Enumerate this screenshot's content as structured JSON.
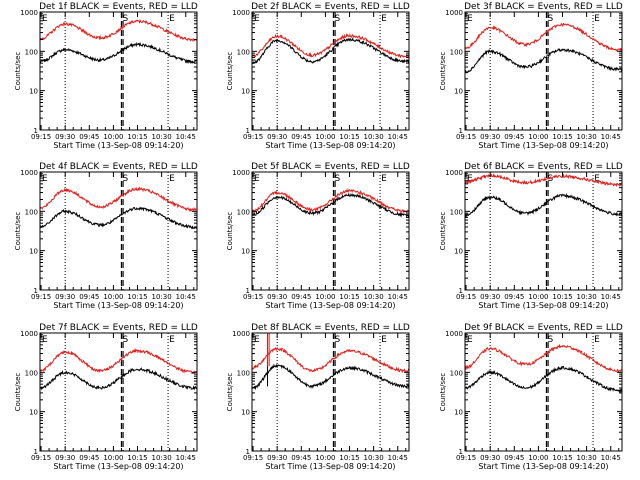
{
  "figure": {
    "colors": {
      "events": "#000000",
      "lld": "#e0201c",
      "axes": "#000000",
      "background": "#ffffff"
    },
    "start_time_label": "Start Time (13-Sep-08 09:14:20)",
    "ylabel": "Counts/sec"
  },
  "chart_data": [
    {
      "type": "line",
      "title": "Det 1f BLACK = Events, RED = LLD",
      "xlabel": "Start Time (13-Sep-08 09:14:20)",
      "ylabel": "Counts/sec",
      "yscale": "log",
      "ylim": [
        1,
        1000
      ],
      "ytick_labels": [
        "1",
        "10",
        "100",
        "1000"
      ],
      "x_tick_labels": [
        "09:15",
        "09:30",
        "09:45",
        "10:00",
        "10:15",
        "10:30",
        "10:45"
      ],
      "xlim": [
        "09:14:20",
        "10:52"
      ],
      "markers": {
        "dotted": [
          "09:30",
          "10:34"
        ],
        "dashed": [
          "10:05",
          "10:06"
        ],
        "letters": [
          "E",
          "S",
          "E"
        ]
      },
      "series": [
        {
          "name": "Events",
          "peaks": [
            {
              "time": "09:30",
              "value": 110
            },
            {
              "time": "10:15",
              "value": 150
            }
          ],
          "troughs": [
            {
              "time": "09:14:20",
              "value": 55
            },
            {
              "time": "09:52",
              "value": 60
            },
            {
              "time": "10:50",
              "value": 55
            }
          ]
        },
        {
          "name": "LLD",
          "peaks": [
            {
              "time": "09:30",
              "value": 500
            },
            {
              "time": "10:15",
              "value": 580
            }
          ],
          "troughs": [
            {
              "time": "09:14:20",
              "value": 210
            },
            {
              "time": "09:52",
              "value": 220
            },
            {
              "time": "10:50",
              "value": 200
            }
          ]
        }
      ]
    },
    {
      "type": "line",
      "title": "Det 2f BLACK = Events, RED = LLD",
      "xlabel": "Start Time (13-Sep-08 09:14:20)",
      "ylabel": "Counts/sec",
      "yscale": "log",
      "ylim": [
        1,
        1000
      ],
      "ytick_labels": [
        "1",
        "10",
        "100",
        "1000"
      ],
      "x_tick_labels": [
        "09:15",
        "09:30",
        "09:45",
        "10:00",
        "10:15",
        "10:30",
        "10:45"
      ],
      "xlim": [
        "09:14:20",
        "10:52"
      ],
      "markers": {
        "dotted": [
          "09:30",
          "10:34"
        ],
        "dashed": [
          "10:05",
          "10:06"
        ],
        "letters": [
          "E",
          "S",
          "E"
        ]
      },
      "series": [
        {
          "name": "Events",
          "peaks": [
            {
              "time": "09:30",
              "value": 190
            },
            {
              "time": "10:15",
              "value": 200
            }
          ],
          "troughs": [
            {
              "time": "09:14:20",
              "value": 50
            },
            {
              "time": "09:52",
              "value": 55
            },
            {
              "time": "10:50",
              "value": 55
            }
          ]
        },
        {
          "name": "LLD",
          "peaks": [
            {
              "time": "09:30",
              "value": 240
            },
            {
              "time": "10:15",
              "value": 250
            }
          ],
          "troughs": [
            {
              "time": "09:14:20",
              "value": 75
            },
            {
              "time": "09:52",
              "value": 80
            },
            {
              "time": "10:50",
              "value": 75
            }
          ]
        }
      ]
    },
    {
      "type": "line",
      "title": "Det 3f BLACK = Events, RED = LLD",
      "xlabel": "Start Time (13-Sep-08 09:14:20)",
      "ylabel": "Counts/sec",
      "yscale": "log",
      "ylim": [
        1,
        1000
      ],
      "ytick_labels": [
        "1",
        "10",
        "100",
        "1000"
      ],
      "x_tick_labels": [
        "09:15",
        "09:30",
        "09:45",
        "10:00",
        "10:15",
        "10:30",
        "10:45"
      ],
      "xlim": [
        "09:14:20",
        "10:52"
      ],
      "markers": {
        "dotted": [
          "09:30",
          "10:34"
        ],
        "dashed": [
          "10:05",
          "10:06"
        ],
        "letters": [
          "E",
          "S",
          "E"
        ]
      },
      "series": [
        {
          "name": "Events",
          "peaks": [
            {
              "time": "09:30",
              "value": 100
            },
            {
              "time": "10:15",
              "value": 110
            }
          ],
          "troughs": [
            {
              "time": "09:14:20",
              "value": 30
            },
            {
              "time": "09:52",
              "value": 40
            },
            {
              "time": "10:50",
              "value": 35
            }
          ]
        },
        {
          "name": "LLD",
          "peaks": [
            {
              "time": "09:30",
              "value": 400
            },
            {
              "time": "10:15",
              "value": 480
            }
          ],
          "troughs": [
            {
              "time": "09:14:20",
              "value": 120
            },
            {
              "time": "09:52",
              "value": 150
            },
            {
              "time": "10:50",
              "value": 110
            }
          ]
        }
      ]
    },
    {
      "type": "line",
      "title": "Det 4f BLACK = Events, RED = LLD",
      "xlabel": "Start Time (13-Sep-08 09:14:20)",
      "ylabel": "Counts/sec",
      "yscale": "log",
      "ylim": [
        1,
        1000
      ],
      "ytick_labels": [
        "1",
        "10",
        "100",
        "1000"
      ],
      "x_tick_labels": [
        "09:15",
        "09:30",
        "09:45",
        "10:00",
        "10:15",
        "10:30",
        "10:45"
      ],
      "xlim": [
        "09:14:20",
        "10:52"
      ],
      "markers": {
        "dotted": [
          "09:30",
          "10:34"
        ],
        "dashed": [
          "10:05",
          "10:06"
        ],
        "letters": [
          "E",
          "S",
          "E"
        ]
      },
      "series": [
        {
          "name": "Events",
          "peaks": [
            {
              "time": "09:30",
              "value": 100
            },
            {
              "time": "10:15",
              "value": 120
            }
          ],
          "troughs": [
            {
              "time": "09:14:20",
              "value": 40
            },
            {
              "time": "09:52",
              "value": 45
            },
            {
              "time": "10:50",
              "value": 40
            }
          ]
        },
        {
          "name": "LLD",
          "peaks": [
            {
              "time": "09:30",
              "value": 350
            },
            {
              "time": "10:15",
              "value": 370
            }
          ],
          "troughs": [
            {
              "time": "09:14:20",
              "value": 120
            },
            {
              "time": "09:52",
              "value": 130
            },
            {
              "time": "10:50",
              "value": 110
            }
          ]
        }
      ]
    },
    {
      "type": "line",
      "title": "Det 5f BLACK = Events, RED = LLD",
      "xlabel": "Start Time (13-Sep-08 09:14:20)",
      "ylabel": "Counts/sec",
      "yscale": "log",
      "ylim": [
        1,
        1000
      ],
      "ytick_labels": [
        "1",
        "10",
        "100",
        "1000"
      ],
      "x_tick_labels": [
        "09:15",
        "09:30",
        "09:45",
        "10:00",
        "10:15",
        "10:30",
        "10:45"
      ],
      "xlim": [
        "09:14:20",
        "10:52"
      ],
      "markers": {
        "dotted": [
          "09:30",
          "10:34"
        ],
        "dashed": [
          "10:05",
          "10:06"
        ],
        "letters": [
          "E",
          "S",
          "E"
        ]
      },
      "series": [
        {
          "name": "Events",
          "peaks": [
            {
              "time": "09:30",
              "value": 230
            },
            {
              "time": "10:15",
              "value": 260
            }
          ],
          "troughs": [
            {
              "time": "09:14:20",
              "value": 80
            },
            {
              "time": "09:52",
              "value": 90
            },
            {
              "time": "10:50",
              "value": 80
            }
          ]
        },
        {
          "name": "LLD",
          "peaks": [
            {
              "time": "09:30",
              "value": 300
            },
            {
              "time": "10:15",
              "value": 330
            }
          ],
          "troughs": [
            {
              "time": "09:14:20",
              "value": 100
            },
            {
              "time": "09:52",
              "value": 110
            },
            {
              "time": "10:50",
              "value": 100
            }
          ]
        }
      ]
    },
    {
      "type": "line",
      "title": "Det 6f BLACK = Events, RED = LLD",
      "xlabel": "Start Time (13-Sep-08 09:14:20)",
      "ylabel": "Counts/sec",
      "yscale": "log",
      "ylim": [
        1,
        1000
      ],
      "ytick_labels": [
        "1",
        "10",
        "100",
        "1000"
      ],
      "x_tick_labels": [
        "09:15",
        "09:30",
        "09:45",
        "10:00",
        "10:15",
        "10:30",
        "10:45"
      ],
      "xlim": [
        "09:14:20",
        "10:52"
      ],
      "markers": {
        "dotted": [
          "09:30",
          "10:34"
        ],
        "dashed": [
          "10:05",
          "10:06"
        ],
        "letters": [
          "E",
          "S",
          "E"
        ]
      },
      "series": [
        {
          "name": "Events",
          "peaks": [
            {
              "time": "09:30",
              "value": 230
            },
            {
              "time": "10:15",
              "value": 250
            }
          ],
          "troughs": [
            {
              "time": "09:14:20",
              "value": 80
            },
            {
              "time": "09:52",
              "value": 90
            },
            {
              "time": "10:50",
              "value": 85
            }
          ]
        },
        {
          "name": "LLD",
          "peaks": [
            {
              "time": "09:30",
              "value": 800
            },
            {
              "time": "10:15",
              "value": 780
            }
          ],
          "troughs": [
            {
              "time": "09:14:20",
              "value": 550
            },
            {
              "time": "09:52",
              "value": 540
            },
            {
              "time": "10:50",
              "value": 480
            }
          ]
        }
      ]
    },
    {
      "type": "line",
      "title": "Det 7f BLACK = Events, RED = LLD",
      "xlabel": "Start Time (13-Sep-08 09:14:20)",
      "ylabel": "Counts/sec",
      "yscale": "log",
      "ylim": [
        1,
        1000
      ],
      "ytick_labels": [
        "1",
        "10",
        "100",
        "1000"
      ],
      "x_tick_labels": [
        "09:15",
        "09:30",
        "09:45",
        "10:00",
        "10:15",
        "10:30",
        "10:45"
      ],
      "xlim": [
        "09:14:20",
        "10:52"
      ],
      "markers": {
        "dotted": [
          "09:30",
          "10:34"
        ],
        "dashed": [
          "10:05",
          "10:06"
        ],
        "letters": [
          "E",
          "S",
          "E"
        ]
      },
      "series": [
        {
          "name": "Events",
          "peaks": [
            {
              "time": "09:30",
              "value": 100
            },
            {
              "time": "10:15",
              "value": 120
            }
          ],
          "troughs": [
            {
              "time": "09:14:20",
              "value": 40
            },
            {
              "time": "09:52",
              "value": 40
            },
            {
              "time": "10:50",
              "value": 40
            }
          ]
        },
        {
          "name": "LLD",
          "peaks": [
            {
              "time": "09:30",
              "value": 330
            },
            {
              "time": "10:15",
              "value": 350
            }
          ],
          "troughs": [
            {
              "time": "09:14:20",
              "value": 110
            },
            {
              "time": "09:52",
              "value": 110
            },
            {
              "time": "10:50",
              "value": 100
            }
          ]
        }
      ]
    },
    {
      "type": "line",
      "title": "Det 8f BLACK = Events, RED = LLD",
      "xlabel": "Start Time (13-Sep-08 09:14:20)",
      "ylabel": "Counts/sec",
      "yscale": "log",
      "ylim": [
        1,
        1000
      ],
      "ytick_labels": [
        "1",
        "10",
        "100",
        "1000"
      ],
      "x_tick_labels": [
        "09:15",
        "09:30",
        "09:45",
        "10:00",
        "10:15",
        "10:30",
        "10:45"
      ],
      "xlim": [
        "09:14:20",
        "10:52"
      ],
      "markers": {
        "dotted": [
          "09:30",
          "10:34"
        ],
        "dashed": [
          "10:05",
          "10:06"
        ],
        "letters": [
          "E",
          "S",
          "E"
        ]
      },
      "series": [
        {
          "name": "Events",
          "peaks": [
            {
              "time": "09:30",
              "value": 150
            },
            {
              "time": "10:15",
              "value": 130
            }
          ],
          "troughs": [
            {
              "time": "09:14:20",
              "value": 40
            },
            {
              "time": "09:52",
              "value": 45
            },
            {
              "time": "10:50",
              "value": 45
            }
          ],
          "spikes": [
            {
              "time": "09:24",
              "value": 1000
            }
          ]
        },
        {
          "name": "LLD",
          "peaks": [
            {
              "time": "09:30",
              "value": 400
            },
            {
              "time": "10:15",
              "value": 350
            }
          ],
          "troughs": [
            {
              "time": "09:14:20",
              "value": 130
            },
            {
              "time": "09:52",
              "value": 110
            },
            {
              "time": "10:50",
              "value": 110
            }
          ],
          "spikes": [
            {
              "time": "09:24",
              "value": 1000
            },
            {
              "time": "09:25",
              "value": 1000
            }
          ]
        }
      ]
    },
    {
      "type": "line",
      "title": "Det 9f BLACK = Events, RED = LLD",
      "xlabel": "Start Time (13-Sep-08 09:14:20)",
      "ylabel": "Counts/sec",
      "yscale": "log",
      "ylim": [
        1,
        1000
      ],
      "ytick_labels": [
        "1",
        "10",
        "100",
        "1000"
      ],
      "x_tick_labels": [
        "09:15",
        "09:30",
        "09:45",
        "10:00",
        "10:15",
        "10:30",
        "10:45"
      ],
      "xlim": [
        "09:14:20",
        "10:52"
      ],
      "markers": {
        "dotted": [
          "09:30",
          "10:34"
        ],
        "dashed": [
          "10:05",
          "10:06"
        ],
        "letters": [
          "E",
          "S",
          "E"
        ]
      },
      "series": [
        {
          "name": "Events",
          "peaks": [
            {
              "time": "09:30",
              "value": 100
            },
            {
              "time": "10:15",
              "value": 130
            }
          ],
          "troughs": [
            {
              "time": "09:14:20",
              "value": 40
            },
            {
              "time": "09:52",
              "value": 40
            },
            {
              "time": "10:50",
              "value": 35
            }
          ]
        },
        {
          "name": "LLD",
          "peaks": [
            {
              "time": "09:30",
              "value": 400
            },
            {
              "time": "10:15",
              "value": 460
            }
          ],
          "troughs": [
            {
              "time": "09:14:20",
              "value": 130
            },
            {
              "time": "09:52",
              "value": 160
            },
            {
              "time": "10:50",
              "value": 110
            }
          ]
        }
      ]
    }
  ]
}
